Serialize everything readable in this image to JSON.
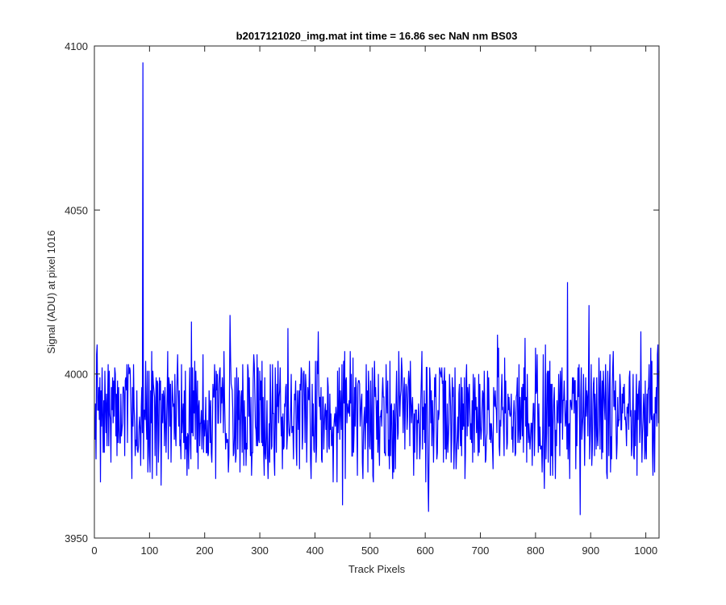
{
  "chart_data": {
    "type": "line",
    "title": "b2017121020_img.mat int time = 16.86 sec  NaN nm BS03",
    "xlabel": "Track Pixels",
    "ylabel": "Signal (ADU) at pixel 1016",
    "xlim": [
      0,
      1024
    ],
    "ylim": [
      3950,
      4100
    ],
    "xticks": [
      0,
      100,
      200,
      300,
      400,
      500,
      600,
      700,
      800,
      900,
      1000
    ],
    "yticks": [
      3950,
      4000,
      4050,
      4100
    ],
    "grid": false,
    "box": true,
    "series_color": "#0000ff",
    "axis_color": "#262626",
    "noise": {
      "baseline": 3991,
      "low": 3973,
      "high": 4003,
      "seed": 7
    },
    "features": [
      {
        "x": 87,
        "y": 4095
      },
      {
        "x": 10,
        "y": 3967
      },
      {
        "x": 449,
        "y": 3960
      },
      {
        "x": 605,
        "y": 3958
      },
      {
        "x": 880,
        "y": 3957
      },
      {
        "x": 857,
        "y": 4028
      },
      {
        "x": 896,
        "y": 4021
      },
      {
        "x": 245,
        "y": 4018
      },
      {
        "x": 175,
        "y": 4016
      },
      {
        "x": 990,
        "y": 4013
      },
      {
        "x": 350,
        "y": 4014
      },
      {
        "x": 405,
        "y": 4013
      },
      {
        "x": 815,
        "y": 3965
      },
      {
        "x": 505,
        "y": 3967
      },
      {
        "x": 120,
        "y": 3966
      },
      {
        "x": 1012,
        "y": 3969
      },
      {
        "x": 3,
        "y": 4006
      },
      {
        "x": 150,
        "y": 4006
      },
      {
        "x": 730,
        "y": 4012
      },
      {
        "x": 780,
        "y": 4011
      }
    ]
  }
}
